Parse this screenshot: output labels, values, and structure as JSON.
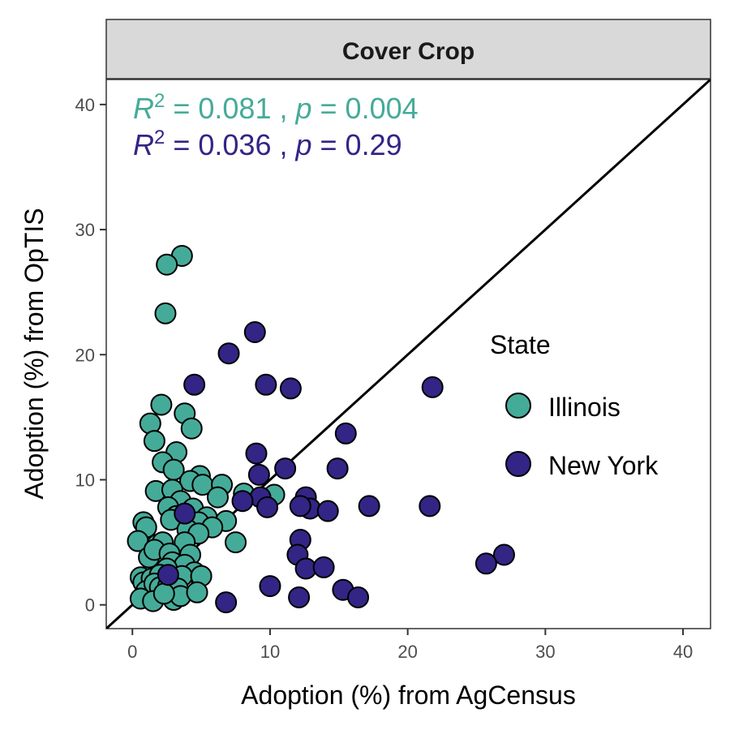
{
  "chart_data": {
    "type": "scatter",
    "facet_title": "Cover Crop",
    "xlabel": "Adoption (%) from AgCensus",
    "ylabel": "Adoption (%) from OpTIS",
    "xlim": [
      -1.9,
      42
    ],
    "ylim": [
      -1.9,
      42
    ],
    "x_ticks": [
      0,
      10,
      20,
      30,
      40
    ],
    "y_ticks": [
      0,
      10,
      20,
      30,
      40
    ],
    "grid": false,
    "reference_line": "y = x",
    "legend": {
      "title": "State",
      "placement": "right",
      "entries": [
        {
          "label": "Illinois",
          "color": "#45AB99"
        },
        {
          "label": "New York",
          "color": "#322586"
        }
      ]
    },
    "annotations": [
      {
        "r2_label": "R",
        "r2_sup": "2",
        "r2_value": " = 0.081 , ",
        "p_label": "p",
        "p_value": " = 0.004",
        "color": "#45AB99"
      },
      {
        "r2_label": "R",
        "r2_sup": "2",
        "r2_value": " = 0.036 , ",
        "p_label": "p",
        "p_value": " = 0.29",
        "color": "#322586"
      }
    ],
    "series": [
      {
        "name": "Illinois",
        "color": "#45AB99",
        "points": [
          [
            3.6,
            27.9
          ],
          [
            2.5,
            27.2
          ],
          [
            2.4,
            23.3
          ],
          [
            2.1,
            16.0
          ],
          [
            3.8,
            15.3
          ],
          [
            1.3,
            14.5
          ],
          [
            4.3,
            14.1
          ],
          [
            1.6,
            13.1
          ],
          [
            3.2,
            12.2
          ],
          [
            2.2,
            11.4
          ],
          [
            3.0,
            10.8
          ],
          [
            4.9,
            10.3
          ],
          [
            4.2,
            9.9
          ],
          [
            5.1,
            9.6
          ],
          [
            6.5,
            9.6
          ],
          [
            1.7,
            9.1
          ],
          [
            2.9,
            9.2
          ],
          [
            6.2,
            8.6
          ],
          [
            8.1,
            8.9
          ],
          [
            10.3,
            8.8
          ],
          [
            3.5,
            8.3
          ],
          [
            2.6,
            7.8
          ],
          [
            4.4,
            7.7
          ],
          [
            3.2,
            7.1
          ],
          [
            5.4,
            7.0
          ],
          [
            6.8,
            6.7
          ],
          [
            4.8,
            6.6
          ],
          [
            0.8,
            6.6
          ],
          [
            1.0,
            6.2
          ],
          [
            2.8,
            6.8
          ],
          [
            4.0,
            6.0
          ],
          [
            5.8,
            6.2
          ],
          [
            4.8,
            5.7
          ],
          [
            0.4,
            5.1
          ],
          [
            1.8,
            4.8
          ],
          [
            2.2,
            5.0
          ],
          [
            3.8,
            5.0
          ],
          [
            7.5,
            5.0
          ],
          [
            1.2,
            3.8
          ],
          [
            1.6,
            4.4
          ],
          [
            2.7,
            4.1
          ],
          [
            4.2,
            4.0
          ],
          [
            2.9,
            3.4
          ],
          [
            3.8,
            3.2
          ],
          [
            2.5,
            2.9
          ],
          [
            4.5,
            2.6
          ],
          [
            0.6,
            2.2
          ],
          [
            0.8,
            1.8
          ],
          [
            1.4,
            2.1
          ],
          [
            2.0,
            2.4
          ],
          [
            3.6,
            2.3
          ],
          [
            5.0,
            2.3
          ],
          [
            1.0,
            1.1
          ],
          [
            1.6,
            1.7
          ],
          [
            2.0,
            1.4
          ],
          [
            2.6,
            1.5
          ],
          [
            3.3,
            1.3
          ],
          [
            0.6,
            0.5
          ],
          [
            1.5,
            0.3
          ],
          [
            3.0,
            0.4
          ],
          [
            3.5,
            0.7
          ],
          [
            4.7,
            1.0
          ],
          [
            2.3,
            0.9
          ]
        ]
      },
      {
        "name": "New York",
        "color": "#322586",
        "points": [
          [
            8.9,
            21.8
          ],
          [
            7.0,
            20.1
          ],
          [
            4.5,
            17.6
          ],
          [
            9.7,
            17.6
          ],
          [
            11.5,
            17.3
          ],
          [
            21.8,
            17.4
          ],
          [
            15.5,
            13.7
          ],
          [
            9.0,
            12.1
          ],
          [
            11.1,
            10.9
          ],
          [
            14.9,
            10.9
          ],
          [
            9.2,
            10.4
          ],
          [
            12.6,
            8.6
          ],
          [
            9.3,
            8.6
          ],
          [
            8.0,
            8.3
          ],
          [
            12.9,
            7.7
          ],
          [
            9.8,
            7.8
          ],
          [
            12.2,
            7.9
          ],
          [
            14.2,
            7.5
          ],
          [
            17.2,
            7.9
          ],
          [
            21.6,
            7.9
          ],
          [
            3.8,
            7.3
          ],
          [
            12.2,
            5.2
          ],
          [
            12.0,
            4.0
          ],
          [
            27.0,
            4.0
          ],
          [
            25.7,
            3.3
          ],
          [
            12.6,
            2.9
          ],
          [
            13.9,
            3.0
          ],
          [
            2.6,
            2.4
          ],
          [
            10.0,
            1.5
          ],
          [
            15.3,
            1.2
          ],
          [
            12.1,
            0.6
          ],
          [
            16.4,
            0.6
          ],
          [
            6.8,
            0.2
          ]
        ]
      }
    ]
  }
}
